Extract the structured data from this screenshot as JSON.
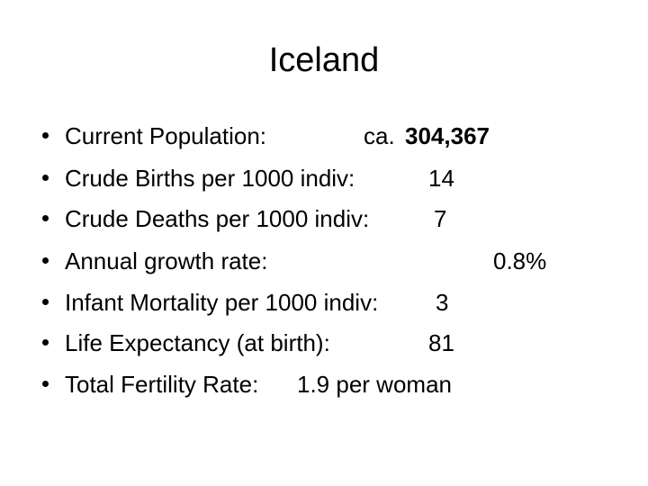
{
  "slide": {
    "title": "Iceland",
    "items": [
      {
        "label": "Current Population:",
        "prefix": "ca.",
        "value": "304,367"
      },
      {
        "label": "Crude Births per 1000 indiv:",
        "value": "14"
      },
      {
        "label": "Crude Deaths per 1000 indiv:",
        "value": "7"
      },
      {
        "label": "Annual growth rate:",
        "value": "0.8%"
      },
      {
        "label": "Infant Mortality per 1000 indiv:",
        "value": "3"
      },
      {
        "label": "Life Expectancy (at birth):",
        "value": "81"
      },
      {
        "label": "Total Fertility Rate:",
        "value": "1.9 per woman"
      }
    ]
  }
}
